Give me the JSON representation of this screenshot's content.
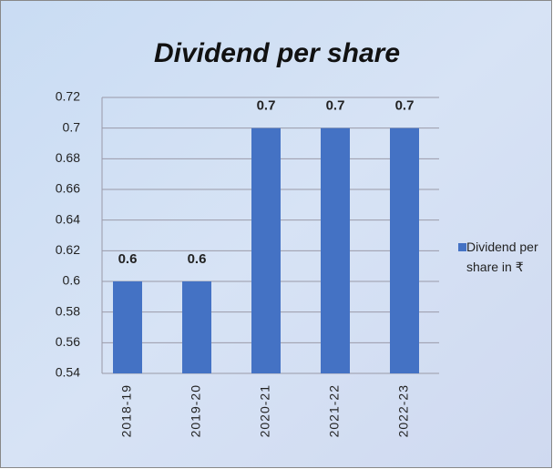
{
  "chart_data": {
    "type": "bar",
    "title": "Dividend per share",
    "categories": [
      "2018-19",
      "2019-20",
      "2020-21",
      "2021-22",
      "2022-23"
    ],
    "series": [
      {
        "name": "Dividend per share in ₹",
        "color": "#4472c4",
        "values": [
          0.6,
          0.6,
          0.7,
          0.7,
          0.7
        ]
      }
    ],
    "ylim": [
      0.54,
      0.72
    ],
    "yticks": [
      0.54,
      0.56,
      0.58,
      0.6,
      0.62,
      0.64,
      0.66,
      0.68,
      0.7,
      0.72
    ],
    "grid": true,
    "legend": "right"
  }
}
